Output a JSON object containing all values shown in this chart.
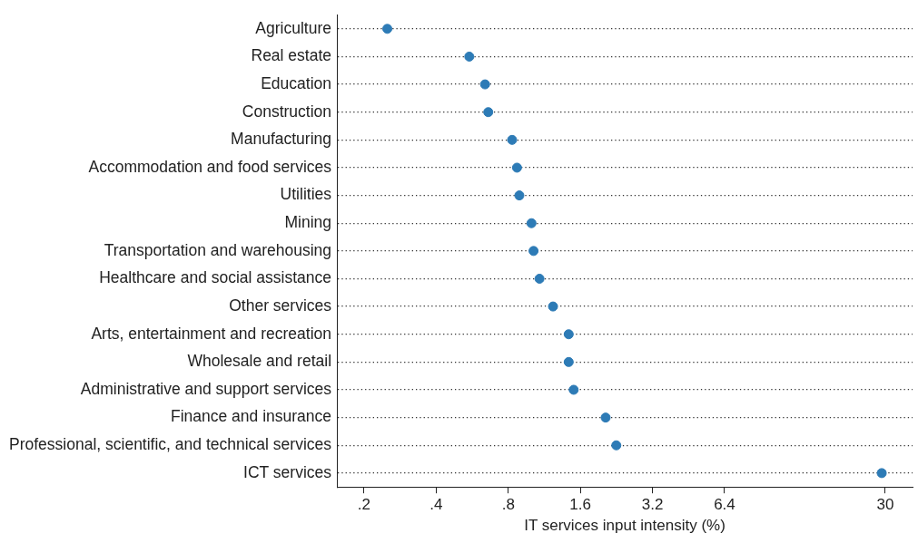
{
  "chart_data": {
    "type": "scatter",
    "xlabel": "IT services input intensity (%)",
    "categories": [
      "Agriculture",
      "Real estate",
      "Education",
      "Construction",
      "Manufacturing",
      "Accommodation and food services",
      "Utilities",
      "Mining",
      "Transportation and warehousing",
      "Healthcare and social assistance",
      "Other services",
      "Arts, entertainment and recreation",
      "Wholesale and retail",
      "Administrative and support services",
      "Finance and insurance",
      "Professional, scientific, and technical services",
      "ICT services"
    ],
    "values": [
      0.25,
      0.55,
      0.64,
      0.66,
      0.83,
      0.87,
      0.89,
      1.0,
      1.02,
      1.08,
      1.23,
      1.43,
      1.43,
      1.5,
      2.04,
      2.26,
      29
    ],
    "color": "#2d7bb6",
    "marker": "circle",
    "grid": "y",
    "log": "x",
    "orientation": "horizontal",
    "xlim": [
      0.154,
      39
    ],
    "xticks": [
      {
        "value": 0.2,
        "label": ".2"
      },
      {
        "value": 0.4,
        "label": ".4"
      },
      {
        "value": 0.8,
        "label": ".8"
      },
      {
        "value": 1.6,
        "label": "1.6"
      },
      {
        "value": 3.2,
        "label": "3.2"
      },
      {
        "value": 6.4,
        "label": "6.4"
      },
      {
        "value": 30,
        "label": "30"
      }
    ]
  }
}
